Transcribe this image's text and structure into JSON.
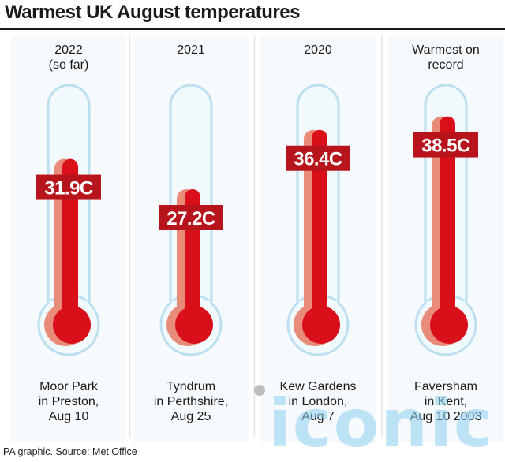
{
  "title": "Warmest UK August temperatures",
  "source": "PA graphic. Source: Met Office",
  "watermark": "iconic",
  "colors": {
    "mercury": "#d9101a",
    "mercury_shade": "#e88b78",
    "label_bg": "#b8141c",
    "tube_fill": "#f2f9fd",
    "tube_stroke": "#bcdff0",
    "column_bg": "#ebf5fb",
    "divider": "#e6e6e6"
  },
  "chart_data": {
    "type": "bar",
    "unit": "C",
    "categories": [
      [
        "2022",
        "(so far)"
      ],
      [
        "2021"
      ],
      [
        "2020"
      ],
      [
        "Warmest on",
        "record"
      ]
    ],
    "values": [
      31.9,
      27.2,
      36.4,
      38.5
    ],
    "value_labels": [
      "31.9C",
      "27.2C",
      "36.4C",
      "38.5C"
    ],
    "locations": [
      [
        "Moor Park",
        "in Preston,",
        "Aug 10"
      ],
      [
        "Tyndrum",
        "in Perthshire,",
        "Aug 25"
      ],
      [
        "Kew Gardens",
        "in London,",
        "Aug 7"
      ],
      [
        "Faversham",
        "in Kent,",
        "Aug 10 2003"
      ]
    ]
  }
}
